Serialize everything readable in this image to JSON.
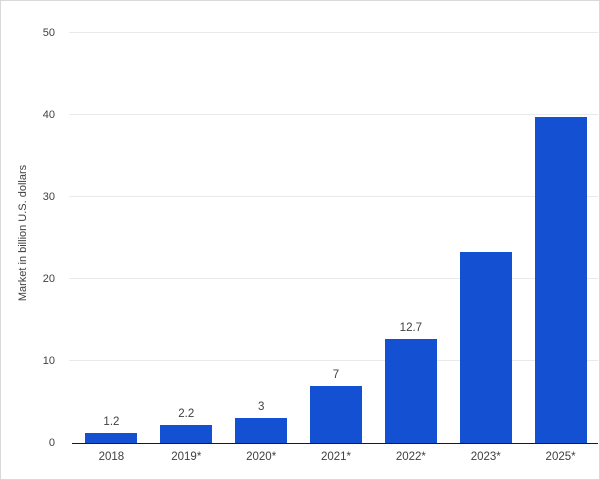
{
  "chart_data": {
    "type": "bar",
    "title": "",
    "xlabel": "",
    "ylabel": "Market in billion U.S. dollars",
    "categories": [
      "2018",
      "2019*",
      "2020*",
      "2021*",
      "2022*",
      "2023*",
      "2025*"
    ],
    "values": [
      1.2,
      2.2,
      3,
      7,
      12.7,
      23.3,
      39.7
    ],
    "data_labels": [
      "1.2",
      "2.2",
      "3",
      "7",
      "12.7",
      "",
      ""
    ],
    "ylim": [
      0,
      50
    ],
    "yticks": [
      0,
      10,
      20,
      30,
      40,
      50
    ],
    "grid": true,
    "legend": false,
    "bar_color": "#1450d2",
    "gridline_color": "#e9e9e9",
    "axis_color": "#1a1a1a",
    "text_color": "#404040",
    "background_color": "#ffffff",
    "frame_border_color": "#d9d9d9"
  }
}
